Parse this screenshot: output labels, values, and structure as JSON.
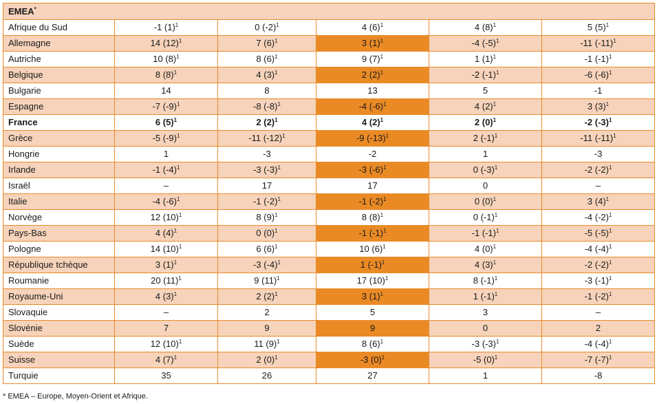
{
  "table": {
    "title": "EMEA",
    "title_mark": "*",
    "superscript": "1",
    "highlight_color": "#ea8a25",
    "shade_color": "#f6d3ba",
    "rows": [
      {
        "country": "Afrique du Sud",
        "shaded": false,
        "bold": false,
        "cells": [
          {
            "text": "-1 (1)",
            "sup": true,
            "hl": false
          },
          {
            "text": "0 (-2)",
            "sup": true,
            "hl": false
          },
          {
            "text": "4 (6)",
            "sup": true,
            "hl": false
          },
          {
            "text": "4 (8)",
            "sup": true,
            "hl": false
          },
          {
            "text": "5 (5)",
            "sup": true,
            "hl": false
          }
        ]
      },
      {
        "country": "Allemagne",
        "shaded": true,
        "bold": false,
        "cells": [
          {
            "text": "14 (12)",
            "sup": true,
            "hl": false
          },
          {
            "text": "7 (6)",
            "sup": true,
            "hl": false
          },
          {
            "text": "3 (1)",
            "sup": true,
            "hl": true
          },
          {
            "text": "-4 (-5)",
            "sup": true,
            "hl": false
          },
          {
            "text": "-11 (-11)",
            "sup": true,
            "hl": false
          }
        ]
      },
      {
        "country": "Autriche",
        "shaded": false,
        "bold": false,
        "cells": [
          {
            "text": "10 (8)",
            "sup": true,
            "hl": false
          },
          {
            "text": "8 (6)",
            "sup": true,
            "hl": false
          },
          {
            "text": "9 (7)",
            "sup": true,
            "hl": false
          },
          {
            "text": "1 (1)",
            "sup": true,
            "hl": false
          },
          {
            "text": "-1 (-1)",
            "sup": true,
            "hl": false
          }
        ]
      },
      {
        "country": "Belgique",
        "shaded": true,
        "bold": false,
        "cells": [
          {
            "text": "8 (8)",
            "sup": true,
            "hl": false
          },
          {
            "text": "4 (3)",
            "sup": true,
            "hl": false
          },
          {
            "text": "2 (2)",
            "sup": true,
            "hl": true
          },
          {
            "text": "-2 (-1)",
            "sup": true,
            "hl": false
          },
          {
            "text": "-6 (-6)",
            "sup": true,
            "hl": false
          }
        ]
      },
      {
        "country": "Bulgarie",
        "shaded": false,
        "bold": false,
        "cells": [
          {
            "text": "14",
            "sup": false,
            "hl": false
          },
          {
            "text": "8",
            "sup": false,
            "hl": false
          },
          {
            "text": "13",
            "sup": false,
            "hl": false
          },
          {
            "text": "5",
            "sup": false,
            "hl": false
          },
          {
            "text": "-1",
            "sup": false,
            "hl": false
          }
        ]
      },
      {
        "country": "Espagne",
        "shaded": true,
        "bold": false,
        "cells": [
          {
            "text": "-7 (-9)",
            "sup": true,
            "hl": false
          },
          {
            "text": "-8 (-8)",
            "sup": true,
            "hl": false
          },
          {
            "text": "-4 (-6)",
            "sup": true,
            "hl": true
          },
          {
            "text": "4 (2)",
            "sup": true,
            "hl": false
          },
          {
            "text": "3 (3)",
            "sup": true,
            "hl": false
          }
        ]
      },
      {
        "country": "France",
        "shaded": false,
        "bold": true,
        "cells": [
          {
            "text": "6 (5)",
            "sup": true,
            "hl": false
          },
          {
            "text": "2 (2)",
            "sup": true,
            "hl": false
          },
          {
            "text": "4 (2)",
            "sup": true,
            "hl": false
          },
          {
            "text": "2 (0)",
            "sup": true,
            "hl": false
          },
          {
            "text": "-2 (-3)",
            "sup": true,
            "hl": false
          }
        ]
      },
      {
        "country": "Grèce",
        "shaded": true,
        "bold": false,
        "cells": [
          {
            "text": "-5 (-9)",
            "sup": true,
            "hl": false
          },
          {
            "text": "-11 (-12)",
            "sup": true,
            "hl": false
          },
          {
            "text": "-9 (-13)",
            "sup": true,
            "hl": true
          },
          {
            "text": "2 (-1)",
            "sup": true,
            "hl": false
          },
          {
            "text": "-11 (-11)",
            "sup": true,
            "hl": false
          }
        ]
      },
      {
        "country": "Hongrie",
        "shaded": false,
        "bold": false,
        "cells": [
          {
            "text": "1",
            "sup": false,
            "hl": false
          },
          {
            "text": "-3",
            "sup": false,
            "hl": false
          },
          {
            "text": "-2",
            "sup": false,
            "hl": false
          },
          {
            "text": "1",
            "sup": false,
            "hl": false
          },
          {
            "text": "-3",
            "sup": false,
            "hl": false
          }
        ]
      },
      {
        "country": "Irlande",
        "shaded": true,
        "bold": false,
        "cells": [
          {
            "text": "-1 (-4)",
            "sup": true,
            "hl": false
          },
          {
            "text": "-3 (-3)",
            "sup": true,
            "hl": false
          },
          {
            "text": "-3 (-6)",
            "sup": true,
            "hl": true
          },
          {
            "text": "0 (-3)",
            "sup": true,
            "hl": false
          },
          {
            "text": "-2 (-2)",
            "sup": true,
            "hl": false
          }
        ]
      },
      {
        "country": "Israël",
        "shaded": false,
        "bold": false,
        "cells": [
          {
            "text": "–",
            "sup": false,
            "hl": false
          },
          {
            "text": "17",
            "sup": false,
            "hl": false
          },
          {
            "text": "17",
            "sup": false,
            "hl": false
          },
          {
            "text": "0",
            "sup": false,
            "hl": false
          },
          {
            "text": "–",
            "sup": false,
            "hl": false
          }
        ]
      },
      {
        "country": "Italie",
        "shaded": true,
        "bold": false,
        "cells": [
          {
            "text": "-4 (-6)",
            "sup": true,
            "hl": false
          },
          {
            "text": "-1 (-2)",
            "sup": true,
            "hl": false
          },
          {
            "text": "-1 (-2)",
            "sup": true,
            "hl": true
          },
          {
            "text": "0 (0)",
            "sup": true,
            "hl": false
          },
          {
            "text": "3 (4)",
            "sup": true,
            "hl": false
          }
        ]
      },
      {
        "country": "Norvège",
        "shaded": false,
        "bold": false,
        "cells": [
          {
            "text": "12 (10)",
            "sup": true,
            "hl": false
          },
          {
            "text": "8 (9)",
            "sup": true,
            "hl": false
          },
          {
            "text": "8 (8)",
            "sup": true,
            "hl": false
          },
          {
            "text": "0 (-1)",
            "sup": true,
            "hl": false
          },
          {
            "text": "-4 (-2)",
            "sup": true,
            "hl": false
          }
        ]
      },
      {
        "country": "Pays-Bas",
        "shaded": true,
        "bold": false,
        "cells": [
          {
            "text": "4 (4)",
            "sup": true,
            "hl": false
          },
          {
            "text": "0 (0)",
            "sup": true,
            "hl": false
          },
          {
            "text": "-1 (-1)",
            "sup": true,
            "hl": true
          },
          {
            "text": "-1 (-1)",
            "sup": true,
            "hl": false
          },
          {
            "text": "-5 (-5)",
            "sup": true,
            "hl": false
          }
        ]
      },
      {
        "country": "Pologne",
        "shaded": false,
        "bold": false,
        "cells": [
          {
            "text": "14 (10)",
            "sup": true,
            "hl": false
          },
          {
            "text": "6 (6)",
            "sup": true,
            "hl": false
          },
          {
            "text": "10 (6)",
            "sup": true,
            "hl": false
          },
          {
            "text": "4 (0)",
            "sup": true,
            "hl": false
          },
          {
            "text": "-4 (-4)",
            "sup": true,
            "hl": false
          }
        ]
      },
      {
        "country": "République tchèque",
        "shaded": true,
        "bold": false,
        "cells": [
          {
            "text": "3 (1)",
            "sup": true,
            "hl": false
          },
          {
            "text": "-3 (-4)",
            "sup": true,
            "hl": false
          },
          {
            "text": "1 (-1)",
            "sup": true,
            "hl": true
          },
          {
            "text": "4 (3)",
            "sup": true,
            "hl": false
          },
          {
            "text": "-2 (-2)",
            "sup": true,
            "hl": false
          }
        ]
      },
      {
        "country": "Roumanie",
        "shaded": false,
        "bold": false,
        "cells": [
          {
            "text": "20 (11)",
            "sup": true,
            "hl": false
          },
          {
            "text": "9 (11)",
            "sup": true,
            "hl": false
          },
          {
            "text": "17 (10)",
            "sup": true,
            "hl": false
          },
          {
            "text": "8 (-1)",
            "sup": true,
            "hl": false
          },
          {
            "text": "-3 (-1)",
            "sup": true,
            "hl": false
          }
        ]
      },
      {
        "country": "Royaume-Uni",
        "shaded": true,
        "bold": false,
        "cells": [
          {
            "text": "4 (3)",
            "sup": true,
            "hl": false
          },
          {
            "text": "2 (2)",
            "sup": true,
            "hl": false
          },
          {
            "text": "3 (1)",
            "sup": true,
            "hl": true
          },
          {
            "text": "1 (-1)",
            "sup": true,
            "hl": false
          },
          {
            "text": "-1 (-2)",
            "sup": true,
            "hl": false
          }
        ]
      },
      {
        "country": "Slovaquie",
        "shaded": false,
        "bold": false,
        "cells": [
          {
            "text": "–",
            "sup": false,
            "hl": false
          },
          {
            "text": "2",
            "sup": false,
            "hl": false
          },
          {
            "text": "5",
            "sup": false,
            "hl": false
          },
          {
            "text": "3",
            "sup": false,
            "hl": false
          },
          {
            "text": "–",
            "sup": false,
            "hl": false
          }
        ]
      },
      {
        "country": "Slovénie",
        "shaded": true,
        "bold": false,
        "cells": [
          {
            "text": "7",
            "sup": false,
            "hl": false
          },
          {
            "text": "9",
            "sup": false,
            "hl": false
          },
          {
            "text": "9",
            "sup": false,
            "hl": true
          },
          {
            "text": "0",
            "sup": false,
            "hl": false
          },
          {
            "text": "2",
            "sup": false,
            "hl": false
          }
        ]
      },
      {
        "country": "Suède",
        "shaded": false,
        "bold": false,
        "cells": [
          {
            "text": "12 (10)",
            "sup": true,
            "hl": false
          },
          {
            "text": "11 (9)",
            "sup": true,
            "hl": false
          },
          {
            "text": "8 (6)",
            "sup": true,
            "hl": false
          },
          {
            "text": "-3 (-3)",
            "sup": true,
            "hl": false
          },
          {
            "text": "-4 (-4)",
            "sup": true,
            "hl": false
          }
        ]
      },
      {
        "country": "Suisse",
        "shaded": true,
        "bold": false,
        "cells": [
          {
            "text": "4 (7)",
            "sup": true,
            "hl": false
          },
          {
            "text": "2 (0)",
            "sup": true,
            "hl": false
          },
          {
            "text": "-3 (0)",
            "sup": true,
            "hl": true
          },
          {
            "text": "-5 (0)",
            "sup": true,
            "hl": false
          },
          {
            "text": "-7 (-7)",
            "sup": true,
            "hl": false
          }
        ]
      },
      {
        "country": "Turquie",
        "shaded": false,
        "bold": false,
        "cells": [
          {
            "text": "35",
            "sup": false,
            "hl": false
          },
          {
            "text": "26",
            "sup": false,
            "hl": false
          },
          {
            "text": "27",
            "sup": false,
            "hl": false
          },
          {
            "text": "1",
            "sup": false,
            "hl": false
          },
          {
            "text": "-8",
            "sup": false,
            "hl": false
          }
        ]
      }
    ]
  },
  "footnote": "* EMEA – Europe, Moyen-Orient et Afrique."
}
